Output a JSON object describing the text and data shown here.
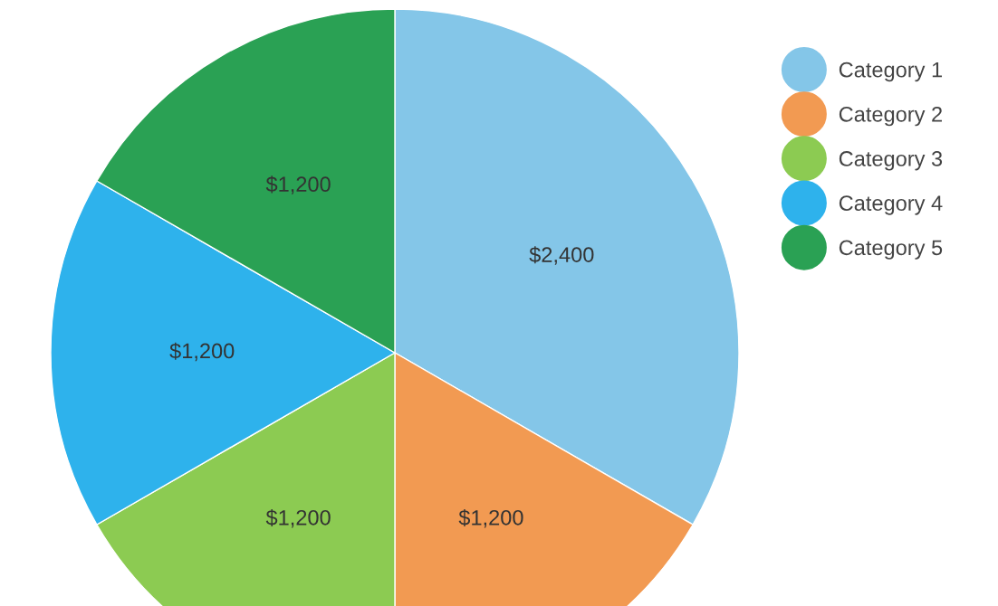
{
  "chart_data": {
    "type": "pie",
    "categories": [
      "Category 1",
      "Category 2",
      "Category 3",
      "Category 4",
      "Category 5"
    ],
    "values": [
      2400,
      1200,
      1200,
      1200,
      1200
    ],
    "value_labels": [
      "$2,400",
      "$1,200",
      "$1,200",
      "$1,200",
      "$1,200"
    ],
    "colors": [
      "#84c6e8",
      "#f29a52",
      "#8ccb52",
      "#2eb2ec",
      "#2aa154"
    ],
    "legend": "right"
  }
}
